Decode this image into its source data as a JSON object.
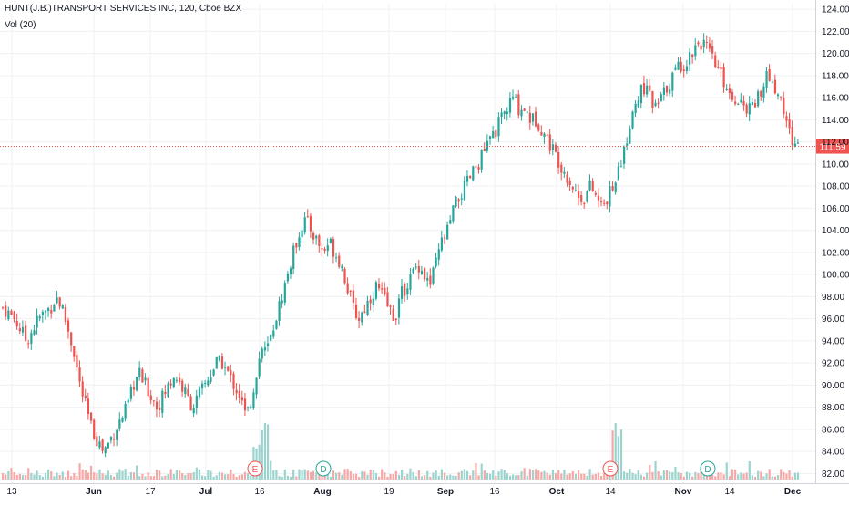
{
  "header": {
    "title": "HUNT(J.B.)TRANSPORT SERVICES INC, 120, Cboe BZX",
    "volume_label": "Vol (20)"
  },
  "colors": {
    "up": "#26a69a",
    "down": "#ef5350",
    "volume_up": "#9bd4cf",
    "volume_down": "#f6a8a6",
    "grid": "#eef0f3",
    "price_line": "#ef5350",
    "price_badge": "#ef5350",
    "axis_text": "#131722",
    "marker_earnings": "#ef5350",
    "marker_dividend": "#26a69a"
  },
  "chart_data": {
    "type": "candlestick",
    "title": "HUNT(J.B.)TRANSPORT SERVICES INC, 120, Cboe BZX",
    "last_price": 111.59,
    "y_axis": {
      "ticks": [
        "124.00",
        "122.00",
        "120.00",
        "118.00",
        "116.00",
        "114.00",
        "112.00",
        "110.00",
        "108.00",
        "106.00",
        "104.00",
        "102.00",
        "100.00",
        "98.00",
        "96.00",
        "94.00",
        "92.00",
        "90.00",
        "88.00",
        "86.00",
        "84.00",
        "82.00"
      ],
      "ylim": [
        81.7,
        124.5
      ]
    },
    "x_axis": {
      "ticks": [
        "13",
        "Jun",
        "17",
        "Jul",
        "16",
        "Aug",
        "19",
        "Sep",
        "16",
        "Oct",
        "14",
        "Nov",
        "14",
        "Dec"
      ],
      "bold_ticks": [
        "Jun",
        "Jul",
        "Aug",
        "Sep",
        "Oct",
        "Nov",
        "Dec"
      ]
    },
    "grid": true,
    "events": [
      {
        "label": "E",
        "kind": "earnings",
        "near_tick": "16"
      },
      {
        "label": "D",
        "kind": "dividend",
        "near_tick": "Aug"
      },
      {
        "label": "E",
        "kind": "earnings",
        "near_tick": "14"
      },
      {
        "label": "D",
        "kind": "dividend",
        "near_tick": "Nov"
      }
    ],
    "close_path": [
      [
        0,
        97
      ],
      [
        2,
        96
      ],
      [
        4,
        94
      ],
      [
        6,
        96
      ],
      [
        8,
        97
      ],
      [
        9,
        98
      ],
      [
        10,
        97
      ],
      [
        11,
        95
      ],
      [
        12,
        93
      ],
      [
        13,
        90
      ],
      [
        14,
        88
      ],
      [
        15,
        86
      ],
      [
        16,
        85
      ],
      [
        17,
        84
      ],
      [
        18,
        85
      ],
      [
        19,
        86
      ],
      [
        20,
        87
      ],
      [
        21,
        88
      ],
      [
        22,
        90
      ],
      [
        23,
        91
      ],
      [
        24,
        90
      ],
      [
        25,
        89
      ],
      [
        26,
        88
      ],
      [
        27,
        89
      ],
      [
        28,
        90
      ],
      [
        29,
        91
      ],
      [
        30,
        90
      ],
      [
        31,
        89
      ],
      [
        32,
        88
      ],
      [
        33,
        89
      ],
      [
        34,
        90
      ],
      [
        35,
        91
      ],
      [
        36,
        92
      ],
      [
        37,
        92
      ],
      [
        38,
        91
      ],
      [
        39,
        90
      ],
      [
        40,
        89
      ],
      [
        41,
        87
      ],
      [
        42,
        89
      ],
      [
        43,
        92
      ],
      [
        44,
        93
      ],
      [
        45,
        94
      ],
      [
        46,
        96
      ],
      [
        47,
        98
      ],
      [
        48,
        100
      ],
      [
        49,
        102
      ],
      [
        50,
        104
      ],
      [
        51,
        105
      ],
      [
        52,
        104
      ],
      [
        53,
        103
      ],
      [
        54,
        102
      ],
      [
        55,
        103
      ],
      [
        56,
        102
      ],
      [
        57,
        101
      ],
      [
        58,
        99
      ],
      [
        59,
        97
      ],
      [
        60,
        96
      ],
      [
        61,
        97
      ],
      [
        62,
        98
      ],
      [
        63,
        99
      ],
      [
        64,
        98
      ],
      [
        65,
        97
      ],
      [
        66,
        96
      ],
      [
        67,
        98
      ],
      [
        68,
        99
      ],
      [
        69,
        100
      ],
      [
        70,
        101
      ],
      [
        71,
        100
      ],
      [
        72,
        99
      ],
      [
        73,
        101
      ],
      [
        74,
        103
      ],
      [
        75,
        104
      ],
      [
        76,
        106
      ],
      [
        77,
        107
      ],
      [
        78,
        108
      ],
      [
        79,
        109
      ],
      [
        80,
        110
      ],
      [
        81,
        111
      ],
      [
        82,
        112
      ],
      [
        83,
        113
      ],
      [
        84,
        114
      ],
      [
        85,
        115
      ],
      [
        86,
        116
      ],
      [
        87,
        115
      ],
      [
        88,
        115
      ],
      [
        89,
        114
      ],
      [
        90,
        114
      ],
      [
        91,
        113
      ],
      [
        92,
        112
      ],
      [
        93,
        111
      ],
      [
        94,
        110
      ],
      [
        95,
        109
      ],
      [
        96,
        108
      ],
      [
        97,
        107
      ],
      [
        98,
        107
      ],
      [
        99,
        108
      ],
      [
        100,
        107
      ],
      [
        101,
        106
      ],
      [
        102,
        107
      ],
      [
        103,
        108
      ],
      [
        104,
        110
      ],
      [
        105,
        112
      ],
      [
        106,
        114
      ],
      [
        107,
        116
      ],
      [
        108,
        117
      ],
      [
        109,
        116
      ],
      [
        110,
        115
      ],
      [
        111,
        116
      ],
      [
        112,
        117
      ],
      [
        113,
        118
      ],
      [
        114,
        119
      ],
      [
        115,
        119
      ],
      [
        116,
        120
      ],
      [
        117,
        121
      ],
      [
        118,
        121
      ],
      [
        119,
        120
      ],
      [
        120,
        119
      ],
      [
        121,
        118
      ],
      [
        122,
        117
      ],
      [
        123,
        116
      ],
      [
        124,
        116
      ],
      [
        125,
        115
      ],
      [
        126,
        115
      ],
      [
        127,
        116
      ],
      [
        128,
        117
      ],
      [
        129,
        118
      ],
      [
        130,
        117
      ],
      [
        131,
        116
      ],
      [
        132,
        114
      ],
      [
        133,
        112
      ],
      [
        134,
        111.59
      ]
    ],
    "volume_profile": [
      {
        "position": "Jul-16",
        "level": "spike"
      },
      {
        "position": "Oct-14",
        "level": "spike"
      }
    ]
  }
}
